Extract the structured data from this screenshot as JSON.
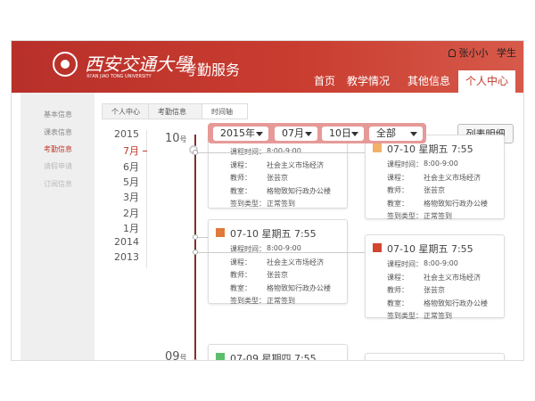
{
  "header": {
    "logo_cn": "西安交通大學",
    "logo_en": "XI'AN JIAO TONG UNIVERSITY",
    "app_title": "考勤服务",
    "user_name": "张小小",
    "user_role": "学生"
  },
  "nav": {
    "items": [
      "首页",
      "教学情况",
      "其他信息",
      "个人中心"
    ],
    "active": 3
  },
  "sidebar": {
    "items": [
      "基本信息",
      "课表信息",
      "考勤信息",
      "请假申请",
      "订阅信息"
    ],
    "active": 2
  },
  "breadcrumb": [
    "个人中心",
    "考勤信息",
    "时间轴"
  ],
  "time_index": {
    "items": [
      "2015",
      "7月",
      "6月",
      "5月",
      "3月",
      "2月",
      "1月",
      "2014",
      "2013"
    ],
    "active": 1
  },
  "days": [
    {
      "day": "10",
      "unit": "号"
    },
    {
      "day": "09",
      "unit": "号"
    }
  ],
  "filter": {
    "selects": [
      "2015年",
      "07月",
      "10日",
      "全部"
    ],
    "button": "列表明细"
  },
  "cards": [
    {
      "fields": [
        {
          "label": "课程时间：",
          "value": "8:00-9:00"
        },
        {
          "label": "课程：",
          "value": "社会主义市场经济"
        },
        {
          "label": "教师：",
          "value": "张芸京"
        },
        {
          "label": "教室：",
          "value": "格物致知行政办公楼"
        },
        {
          "label": "签到类型：",
          "value": "正常签到"
        }
      ]
    },
    {
      "title": "07-10 星期五 7:55",
      "icon": "#f2b06a",
      "fields": [
        {
          "label": "课程时间：",
          "value": "8:00-9:00"
        },
        {
          "label": "课程：",
          "value": "社会主义市场经济"
        },
        {
          "label": "教师：",
          "value": "张芸京"
        },
        {
          "label": "教室：",
          "value": "格物致知行政办公楼"
        },
        {
          "label": "签到类型：",
          "value": "正常签到"
        }
      ]
    },
    {
      "title": "07-10 星期五 7:55",
      "icon": "#e0793a",
      "fields": [
        {
          "label": "课程时间：",
          "value": "8:00-9:00"
        },
        {
          "label": "课程：",
          "value": "社会主义市场经济"
        },
        {
          "label": "教师：",
          "value": "张芸京"
        },
        {
          "label": "教室：",
          "value": "格物致知行政办公楼"
        },
        {
          "label": "签到类型：",
          "value": "正常签到"
        }
      ]
    },
    {
      "title": "07-10 星期五 7:55",
      "icon": "#d2452f",
      "fields": [
        {
          "label": "课程时间：",
          "value": "8:00-9:00"
        },
        {
          "label": "课程：",
          "value": "社会主义市场经济"
        },
        {
          "label": "教师：",
          "value": "张芸京"
        },
        {
          "label": "教室：",
          "value": "格物致知行政办公楼"
        },
        {
          "label": "签到类型：",
          "value": "正常签到"
        }
      ]
    },
    {
      "title": "07-09 星期四 7:55",
      "icon": "#5bbf6a",
      "fields": []
    }
  ]
}
